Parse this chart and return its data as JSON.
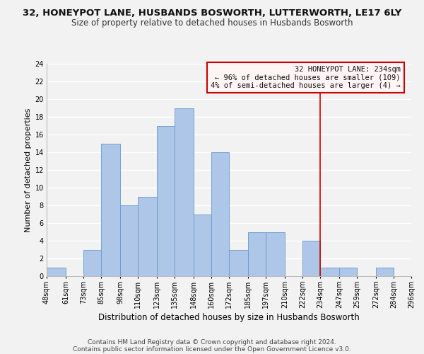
{
  "title": "32, HONEYPOT LANE, HUSBANDS BOSWORTH, LUTTERWORTH, LE17 6LY",
  "subtitle": "Size of property relative to detached houses in Husbands Bosworth",
  "xlabel": "Distribution of detached houses by size in Husbands Bosworth",
  "ylabel": "Number of detached properties",
  "bin_edges": [
    48,
    61,
    73,
    85,
    98,
    110,
    123,
    135,
    148,
    160,
    172,
    185,
    197,
    210,
    222,
    234,
    247,
    259,
    272,
    284,
    296
  ],
  "counts": [
    1,
    0,
    3,
    15,
    8,
    9,
    17,
    19,
    7,
    14,
    3,
    5,
    5,
    0,
    4,
    1,
    1,
    0,
    1,
    0
  ],
  "bar_color": "#aec6e8",
  "bar_edge_color": "#6699cc",
  "reference_line_x": 234,
  "reference_line_color": "#cc0000",
  "annotation_line1": "32 HONEYPOT LANE: 234sqm",
  "annotation_line2": "← 96% of detached houses are smaller (109)",
  "annotation_line3": "4% of semi-detached houses are larger (4) →",
  "annotation_box_facecolor": "#fff5f5",
  "annotation_box_edgecolor": "#cc0000",
  "ylim": [
    0,
    24
  ],
  "yticks": [
    0,
    2,
    4,
    6,
    8,
    10,
    12,
    14,
    16,
    18,
    20,
    22,
    24
  ],
  "footer_line1": "Contains HM Land Registry data © Crown copyright and database right 2024.",
  "footer_line2": "Contains public sector information licensed under the Open Government Licence v3.0.",
  "background_color": "#f2f2f2",
  "grid_color": "#ffffff",
  "title_fontsize": 9.5,
  "subtitle_fontsize": 8.5,
  "xlabel_fontsize": 8.5,
  "ylabel_fontsize": 8,
  "tick_fontsize": 7,
  "annotation_fontsize": 7.5,
  "footer_fontsize": 6.5
}
